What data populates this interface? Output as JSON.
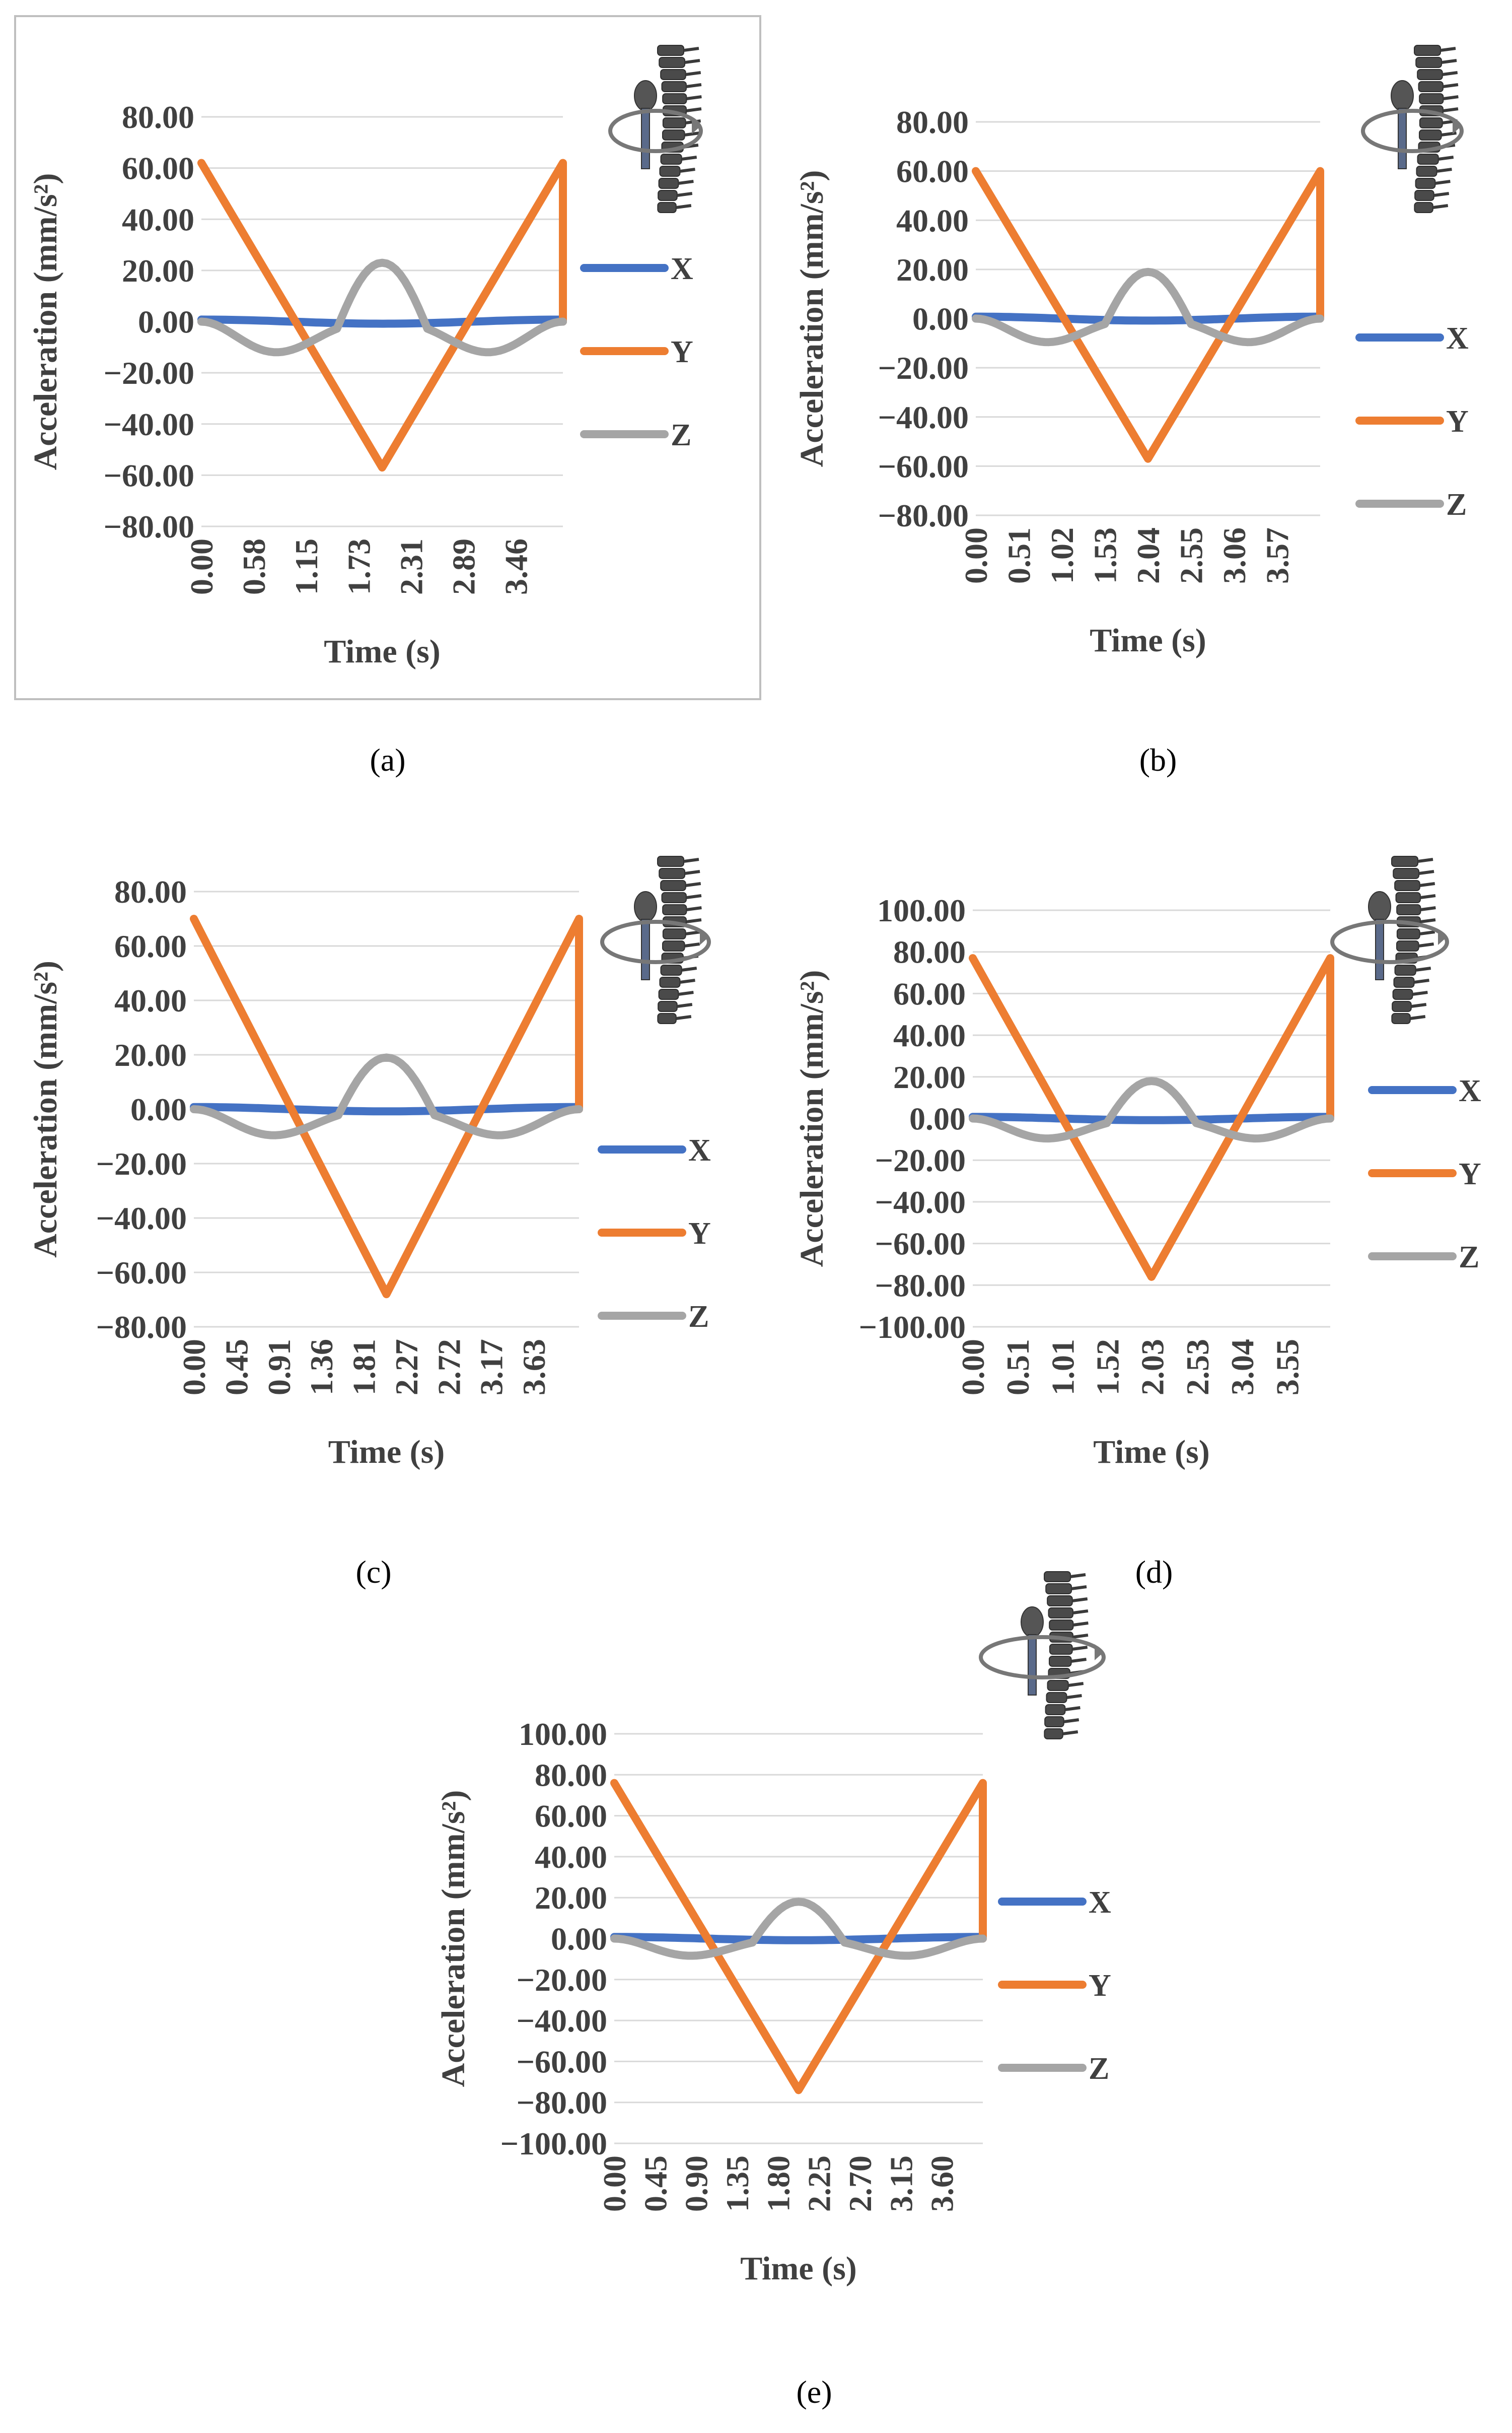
{
  "colors": {
    "X": "#4472c4",
    "Y": "#ed7d31",
    "Z": "#a5a5a5"
  },
  "chart_data": [
    {
      "type": "line",
      "caption": "(a)",
      "xlabel": "Time (s)",
      "ylabel": "Acceleration (mm/s²)",
      "x_ticks": [
        "0.00",
        "0.58",
        "1.15",
        "1.73",
        "2.31",
        "2.89",
        "3.46"
      ],
      "y_ticks": [
        "80.00",
        "60.00",
        "40.00",
        "20.00",
        "0.00",
        "−20.00",
        "−40.00",
        "−60.00",
        "−80.00"
      ],
      "ylim": [
        -80,
        80
      ],
      "xlim": [
        0,
        4.0
      ],
      "legend": "right",
      "series": [
        {
          "name": "X",
          "amp": 1.0,
          "kind": "x"
        },
        {
          "name": "Y",
          "peak": 62,
          "trough": -57,
          "kind": "y"
        },
        {
          "name": "Z",
          "amp": 23,
          "min": -10,
          "kind": "z"
        }
      ]
    },
    {
      "type": "line",
      "caption": "(b)",
      "xlabel": "Time (s)",
      "ylabel": "Acceleration (mm/s²)",
      "x_ticks": [
        "0.00",
        "0.51",
        "1.02",
        "1.53",
        "2.04",
        "2.55",
        "3.06",
        "3.57"
      ],
      "y_ticks": [
        "80.00",
        "60.00",
        "40.00",
        "20.00",
        "0.00",
        "−20.00",
        "−40.00",
        "−60.00",
        "−80.00"
      ],
      "ylim": [
        -80,
        80
      ],
      "xlim": [
        0,
        4.08
      ],
      "legend": "right",
      "series": [
        {
          "name": "X",
          "amp": 1.0,
          "kind": "x"
        },
        {
          "name": "Y",
          "peak": 60,
          "trough": -57,
          "kind": "y"
        },
        {
          "name": "Z",
          "amp": 19,
          "min": -8,
          "kind": "z"
        }
      ]
    },
    {
      "type": "line",
      "caption": "(c)",
      "xlabel": "Time (s)",
      "ylabel": "Acceleration (mm/s²)",
      "x_ticks": [
        "0.00",
        "0.45",
        "0.91",
        "1.36",
        "1.81",
        "2.27",
        "2.72",
        "3.17",
        "3.63"
      ],
      "y_ticks": [
        "80.00",
        "60.00",
        "40.00",
        "20.00",
        "0.00",
        "−20.00",
        "−40.00",
        "−60.00",
        "−80.00"
      ],
      "ylim": [
        -80,
        80
      ],
      "xlim": [
        0,
        4.08
      ],
      "legend": "right",
      "series": [
        {
          "name": "X",
          "amp": 1.0,
          "kind": "x"
        },
        {
          "name": "Y",
          "peak": 70,
          "trough": -68,
          "kind": "y"
        },
        {
          "name": "Z",
          "amp": 19,
          "min": -8,
          "kind": "z"
        }
      ]
    },
    {
      "type": "line",
      "caption": "(d)",
      "xlabel": "Time (s)",
      "ylabel": "Acceleration (mm/s²)",
      "x_ticks": [
        "0.00",
        "0.51",
        "1.01",
        "1.52",
        "2.03",
        "2.53",
        "3.04",
        "3.55"
      ],
      "y_ticks": [
        "100.00",
        "80.00",
        "60.00",
        "40.00",
        "20.00",
        "0.00",
        "−20.00",
        "−40.00",
        "−60.00",
        "−80.00",
        "−100.00"
      ],
      "ylim": [
        -100,
        100
      ],
      "xlim": [
        0,
        4.06
      ],
      "legend": "right",
      "series": [
        {
          "name": "X",
          "amp": 1.0,
          "kind": "x"
        },
        {
          "name": "Y",
          "peak": 77,
          "trough": -76,
          "kind": "y"
        },
        {
          "name": "Z",
          "amp": 18,
          "min": -8,
          "kind": "z"
        }
      ]
    },
    {
      "type": "line",
      "caption": "(e)",
      "xlabel": "Time (s)",
      "ylabel": "Acceleration (mm/s²)",
      "x_ticks": [
        "0.00",
        "0.45",
        "0.90",
        "1.35",
        "1.80",
        "2.25",
        "2.70",
        "3.15",
        "3.60"
      ],
      "y_ticks": [
        "100.00",
        "80.00",
        "60.00",
        "40.00",
        "20.00",
        "0.00",
        "−20.00",
        "−40.00",
        "−60.00",
        "−80.00",
        "−100.00"
      ],
      "ylim": [
        -100,
        100
      ],
      "xlim": [
        0,
        4.05
      ],
      "legend": "right",
      "series": [
        {
          "name": "X",
          "amp": 1.0,
          "kind": "x"
        },
        {
          "name": "Y",
          "peak": 76,
          "trough": -74,
          "kind": "y"
        },
        {
          "name": "Z",
          "amp": 18,
          "min": -7,
          "kind": "z"
        }
      ]
    }
  ]
}
